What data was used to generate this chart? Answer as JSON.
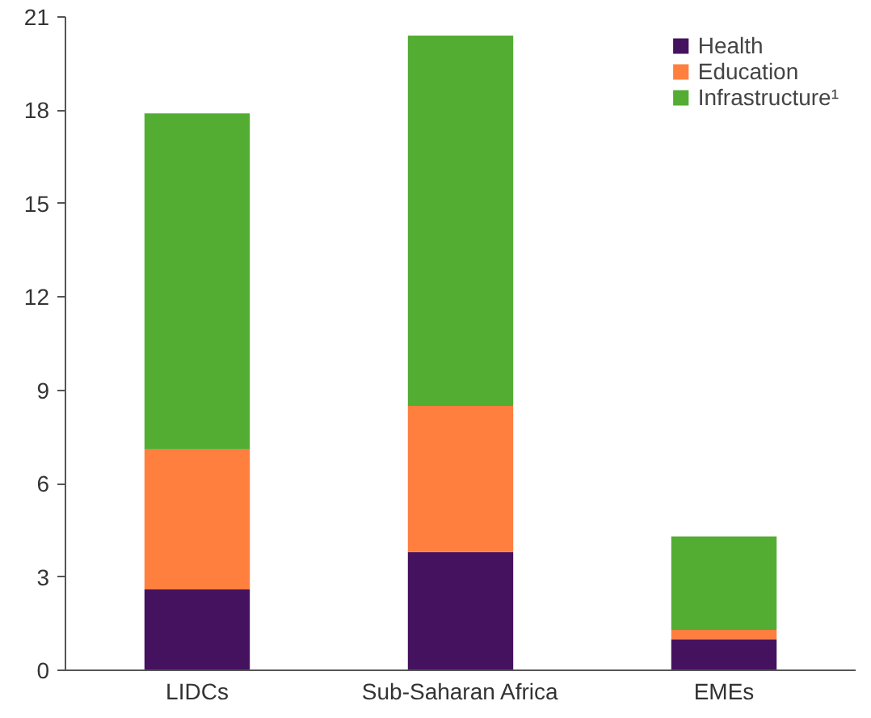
{
  "chart_data": {
    "type": "bar",
    "stacked": true,
    "categories": [
      "LIDCs",
      "Sub-Saharan Africa",
      "EMEs"
    ],
    "series": [
      {
        "name": "Health",
        "color": "#45125f",
        "values": [
          2.6,
          3.8,
          1.0
        ]
      },
      {
        "name": "Education",
        "color": "#ff7f3f",
        "values": [
          4.5,
          4.7,
          0.3
        ]
      },
      {
        "name": "Infrastructure¹",
        "color": "#52ad32",
        "values": [
          10.8,
          11.9,
          3.0
        ]
      }
    ],
    "ylim": [
      0,
      21
    ],
    "yticks": [
      0,
      3,
      6,
      9,
      12,
      15,
      18,
      21
    ],
    "grid": false,
    "legend": "top right"
  }
}
